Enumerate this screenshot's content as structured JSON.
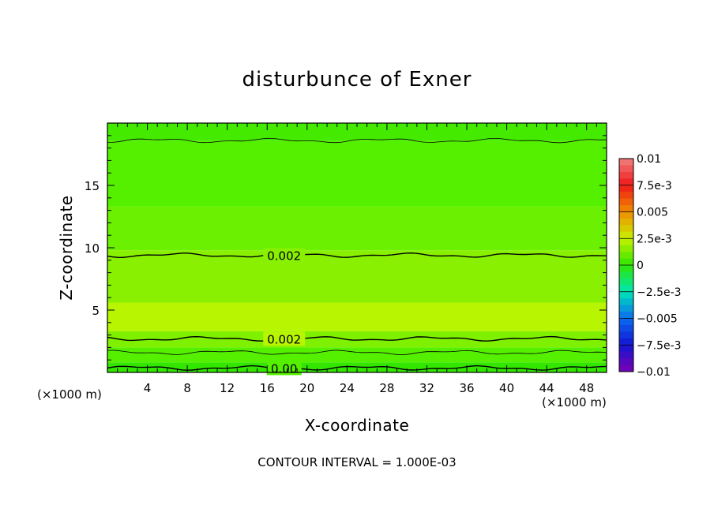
{
  "chart_data": {
    "type": "heatmap",
    "title": "disturbunce of Exner",
    "xlabel": "X-coordinate",
    "ylabel": "Z-coordinate",
    "x_unit": "(×1000 m)",
    "xlim": [
      0,
      50
    ],
    "ylim": [
      0,
      20
    ],
    "x_ticks": [
      4,
      8,
      12,
      16,
      20,
      24,
      28,
      32,
      36,
      40,
      44,
      48
    ],
    "y_ticks": [
      5,
      10,
      15
    ],
    "z_levels": [
      {
        "value": 0.01,
        "label": "0.01",
        "color": "#f08080"
      },
      {
        "value": 0.0075,
        "label": "7.5e-3",
        "color": "#f01818"
      },
      {
        "value": 0.005,
        "label": "0.005",
        "color": "#f08c00"
      },
      {
        "value": 0.0025,
        "label": "2.5e-3",
        "color": "#c8f000"
      },
      {
        "value": 0,
        "label": "0",
        "color": "#2ee600"
      },
      {
        "value": -0.0025,
        "label": "−2.5e-3",
        "color": "#00e6b4"
      },
      {
        "value": -0.005,
        "label": "−0.005",
        "color": "#0a6cf0"
      },
      {
        "value": -0.0075,
        "label": "−7.5e-3",
        "color": "#1414d2"
      },
      {
        "value": -0.01,
        "label": "−0.01",
        "color": "#7a00b4"
      }
    ],
    "fill_bands": [
      {
        "z": [
          0,
          0.8
        ],
        "color": "#33e600"
      },
      {
        "z": [
          0.8,
          2.0
        ],
        "color": "#55f000"
      },
      {
        "z": [
          2.0,
          3.3
        ],
        "color": "#7ef000"
      },
      {
        "z": [
          3.3,
          5.6
        ],
        "color": "#b8f500"
      },
      {
        "z": [
          5.6,
          9.8
        ],
        "color": "#88f000"
      },
      {
        "z": [
          9.8,
          13.3
        ],
        "color": "#6af000"
      },
      {
        "z": [
          13.3,
          18.6
        ],
        "color": "#55f000"
      },
      {
        "z": [
          18.6,
          20
        ],
        "color": "#44ea00"
      }
    ],
    "contours": [
      {
        "z": 0.35,
        "label": "0.00",
        "label_x": 17.7
      },
      {
        "z": 1.6,
        "label": "",
        "label_x": null
      },
      {
        "z": 2.7,
        "label": "0.002",
        "label_x": 17.7
      },
      {
        "z": 9.4,
        "label": "0.002",
        "label_x": 17.7
      },
      {
        "z": 18.6,
        "label": "",
        "label_x": null
      }
    ],
    "contour_interval_label": "CONTOUR INTERVAL = 1.000E-03",
    "grid": false,
    "legend": "colorbar right"
  }
}
